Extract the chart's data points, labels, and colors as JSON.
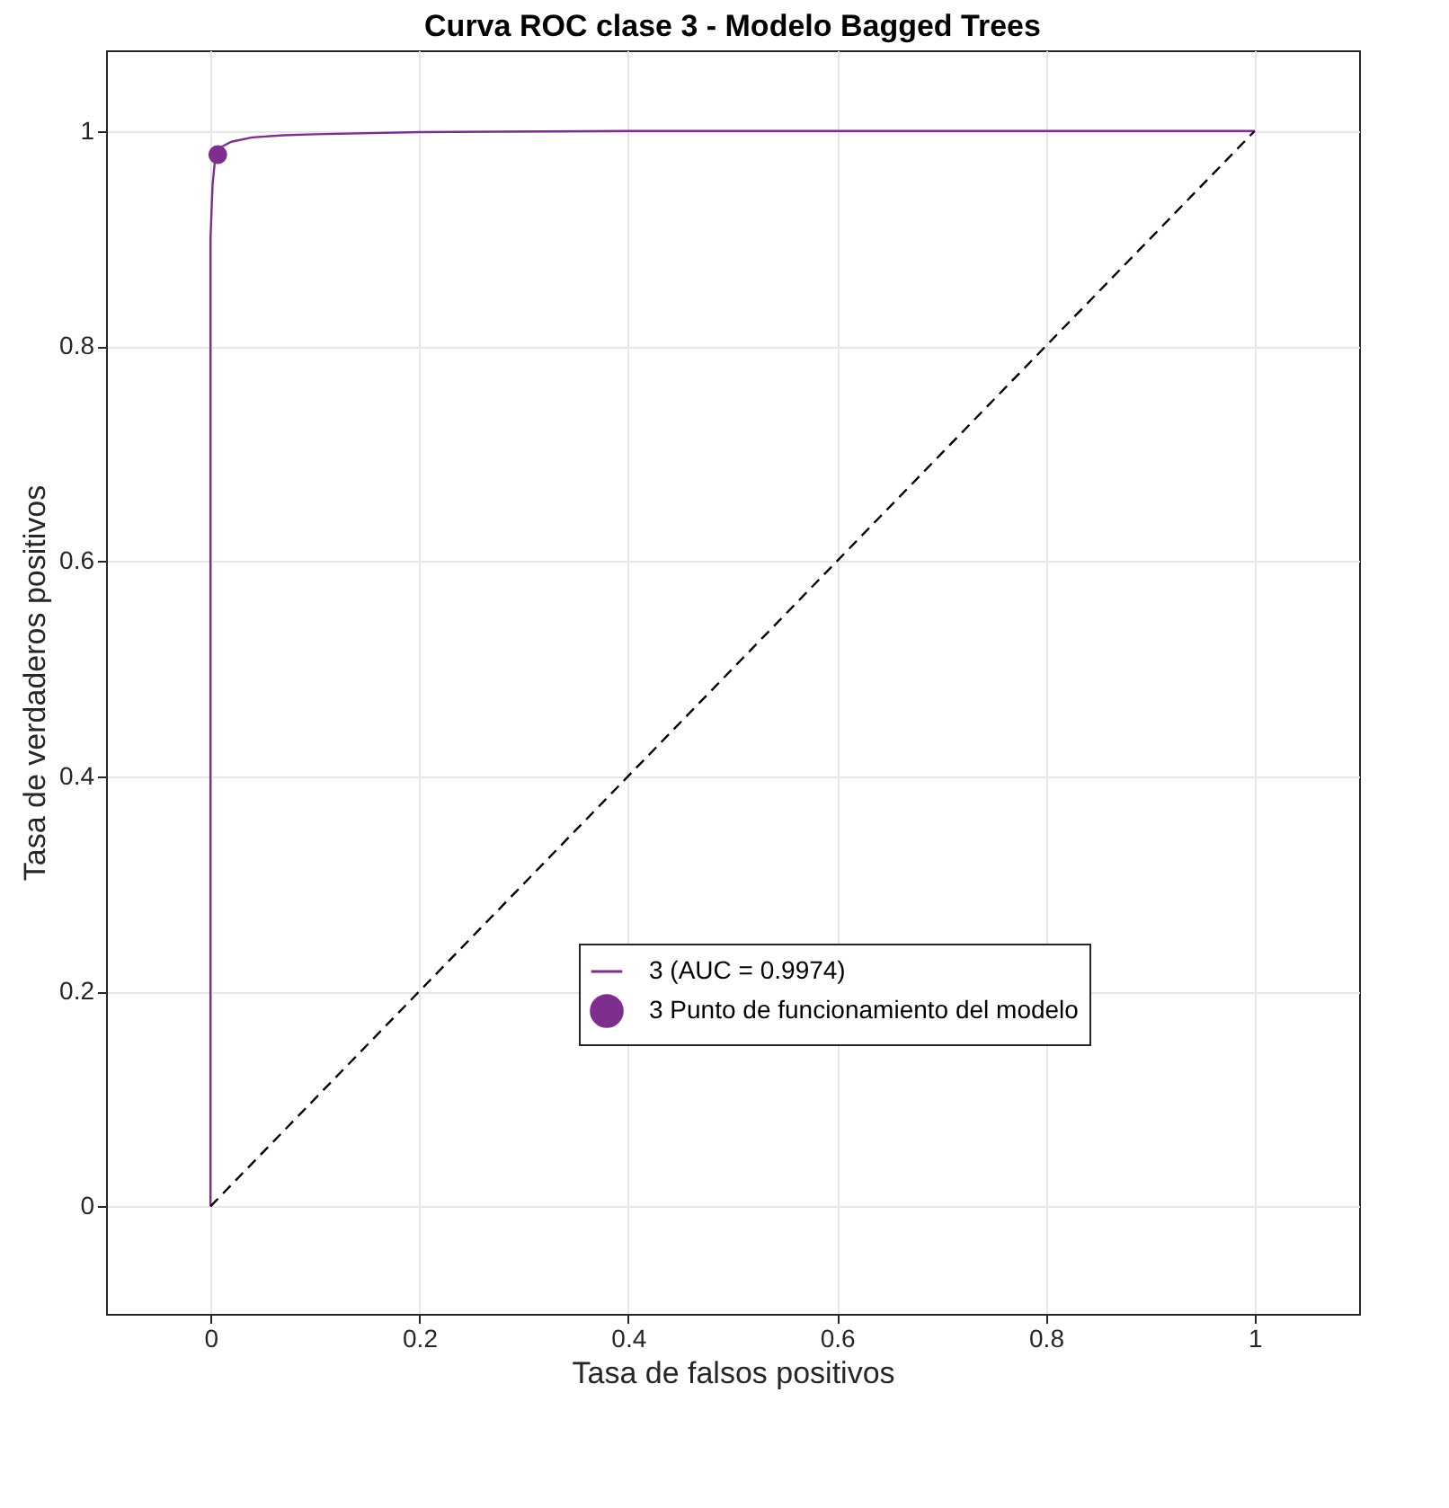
{
  "chart_data": {
    "type": "line",
    "title": "Curva ROC clase 3 - Modelo Bagged Trees",
    "xlabel": "Tasa de falsos positivos",
    "ylabel": "Tasa de verdaderos positivos",
    "xlim": [
      -0.1,
      1.1
    ],
    "ylim": [
      -0.1,
      1.075
    ],
    "xticks": [
      0,
      0.2,
      0.4,
      0.6,
      0.8,
      1
    ],
    "yticks": [
      0,
      0.2,
      0.4,
      0.6,
      0.8,
      1
    ],
    "grid": true,
    "legend": "bottom right",
    "series": [
      {
        "name": "3 (AUC = 0.9974)",
        "color": "#7e2f8e",
        "x": [
          0,
          0,
          0.002,
          0.004,
          0.006,
          0.01,
          0.02,
          0.04,
          0.07,
          0.1,
          0.2,
          0.4,
          1
        ],
        "values": [
          0,
          0.9,
          0.95,
          0.97,
          0.98,
          0.985,
          0.99,
          0.994,
          0.996,
          0.997,
          0.999,
          1,
          1
        ]
      },
      {
        "name": "3 Punto de funcionamiento del modelo",
        "color": "#7e2f8e",
        "type": "scatter",
        "marker": "circle",
        "x": [
          0.007
        ],
        "values": [
          0.978
        ]
      },
      {
        "color": "#000000",
        "line_style": "dashed",
        "x": [
          0,
          1
        ],
        "values": [
          0,
          1
        ]
      }
    ]
  }
}
